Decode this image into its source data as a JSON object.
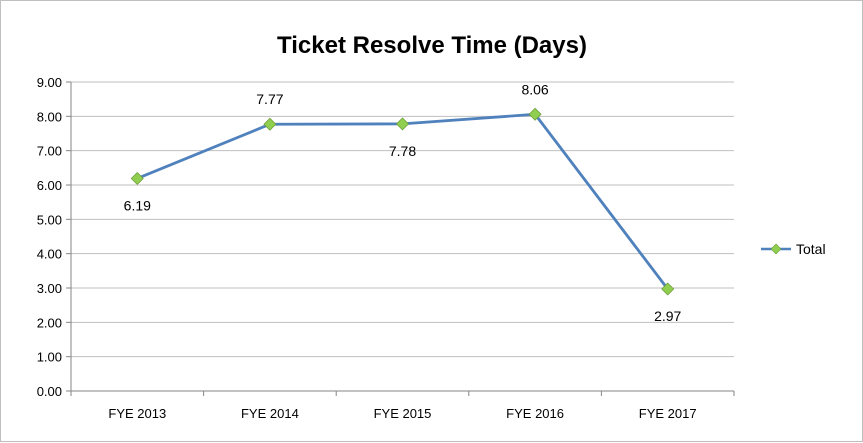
{
  "chart_data": {
    "type": "line",
    "title": "Ticket Resolve Time (Days)",
    "categories": [
      "FYE 2013",
      "FYE 2014",
      "FYE 2015",
      "FYE 2016",
      "FYE 2017"
    ],
    "series": [
      {
        "name": "Total",
        "values": [
          6.19,
          7.77,
          7.78,
          8.06,
          2.97
        ],
        "color": "#4f81bd",
        "marker_color": "#8fce4e"
      }
    ],
    "data_labels": [
      "6.19",
      "7.77",
      "7.78",
      "8.06",
      "2.97"
    ],
    "y_ticks": [
      "0.00",
      "1.00",
      "2.00",
      "3.00",
      "4.00",
      "5.00",
      "6.00",
      "7.00",
      "8.00",
      "9.00"
    ],
    "ylim": [
      0,
      9
    ],
    "grid": true,
    "legend_position": "right",
    "xlabel": "",
    "ylabel": ""
  }
}
